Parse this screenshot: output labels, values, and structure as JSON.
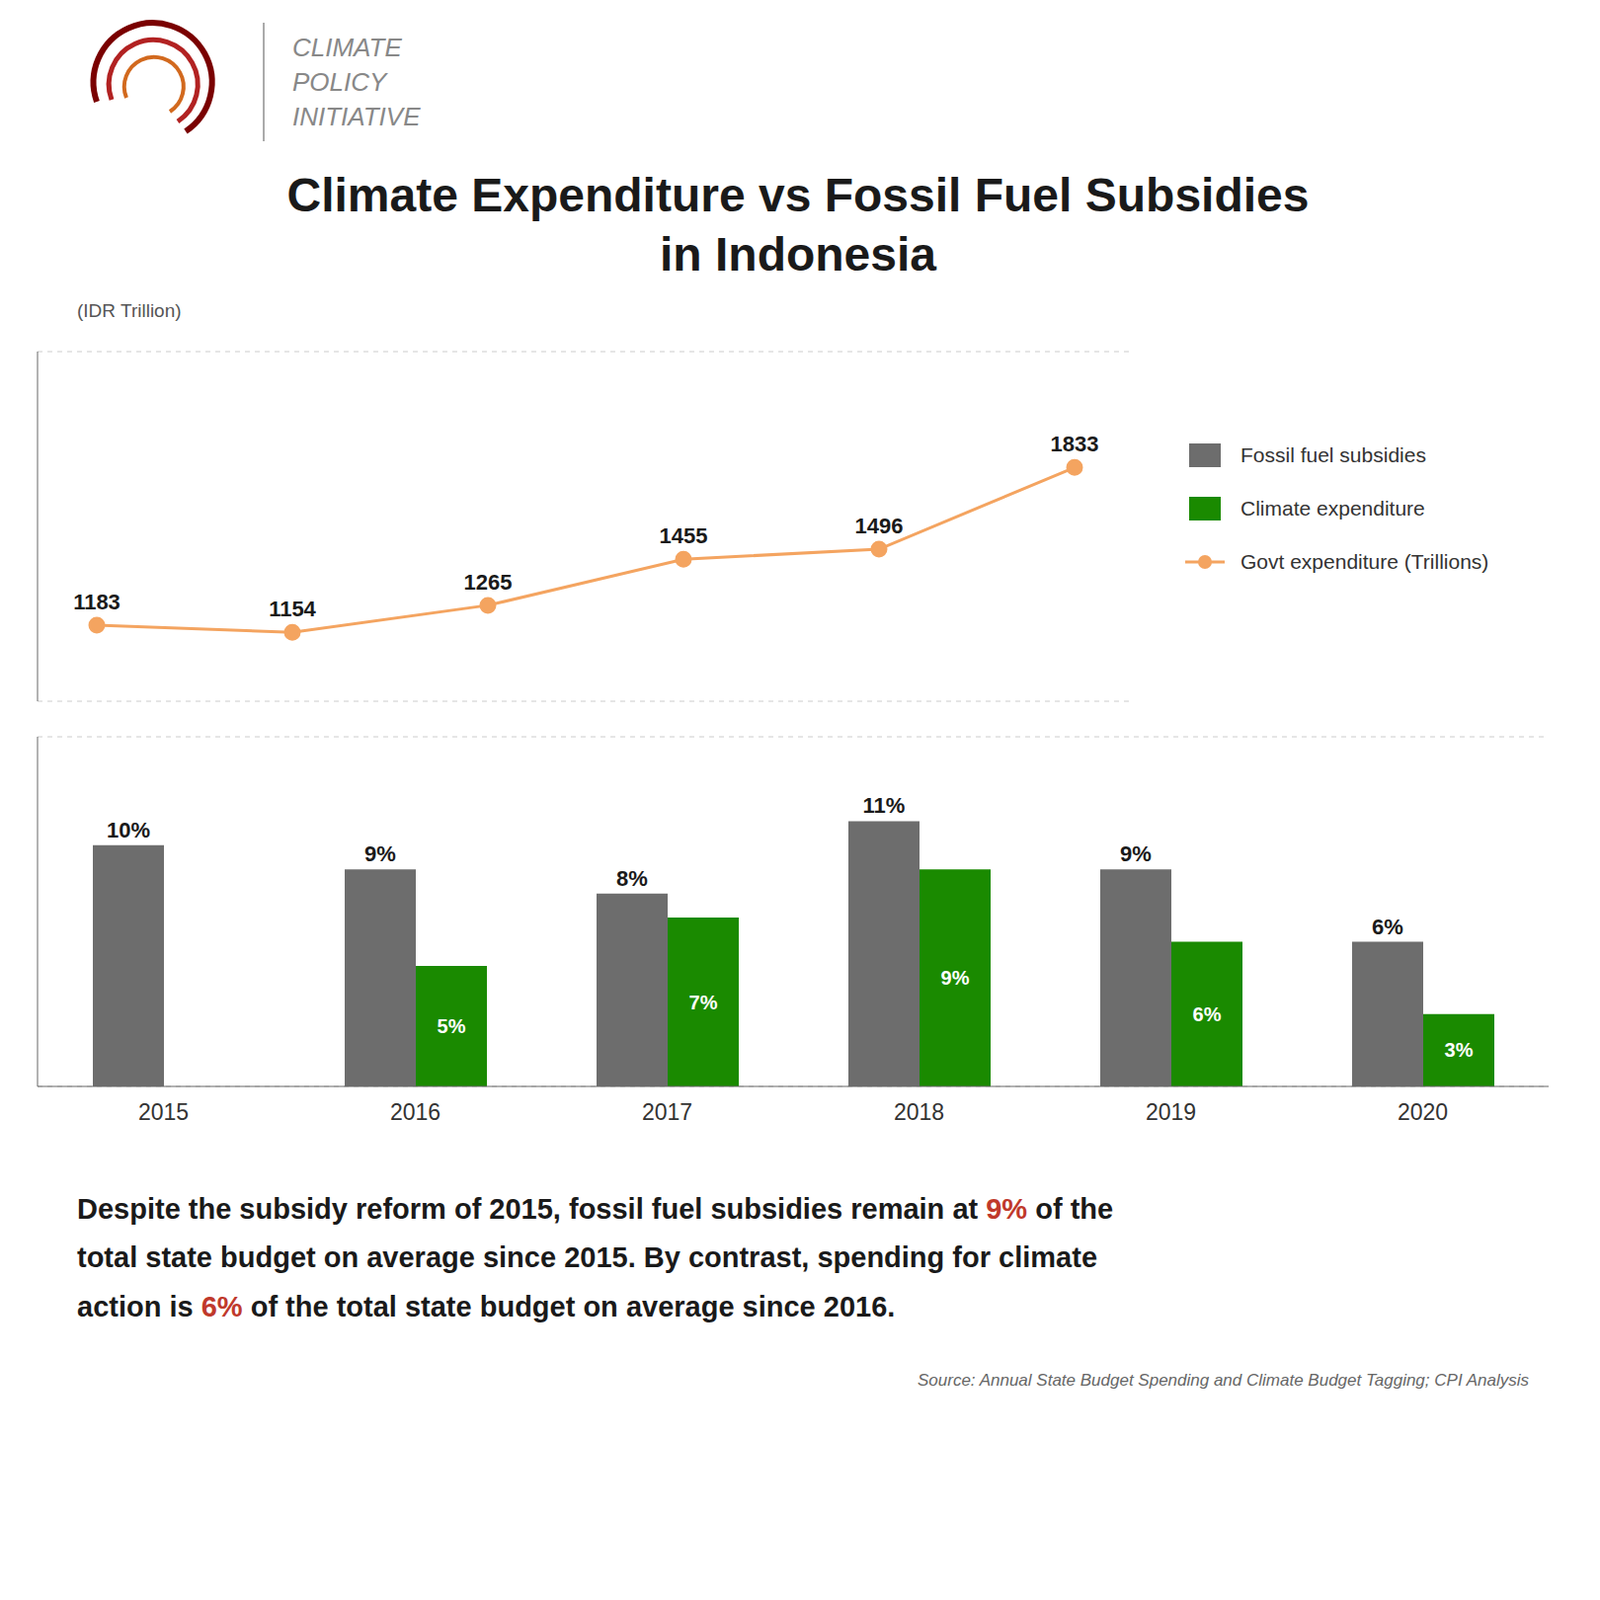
{
  "title": "Climate Expenditure vs Fossil Fuel Subsidies",
  "subtitle": "in Indonesia",
  "header": [
    "CLIMATE",
    "POLICY",
    "INITIATIVE"
  ],
  "chart_data": [
    {
      "type": "line",
      "y_label": "(IDR Trillion)",
      "categories": [
        "2015",
        "2016",
        "2017",
        "2018",
        "2019",
        "2020"
      ],
      "series": [
        {
          "name": "Govt expenditure (Trillions)",
          "color": "#f4a460",
          "marker": "circle",
          "values": [
            1183,
            1154,
            1265,
            1455,
            1496,
            1833
          ]
        }
      ],
      "ylim": [
        870,
        2310
      ],
      "yticks": [
        1050,
        1275,
        1500,
        1725,
        1950
      ],
      "grid": true,
      "tick_labels": false,
      "data_labels": true,
      "legend": "right"
    },
    {
      "type": "bar",
      "categories": [
        "2015",
        "2016",
        "2017",
        "2018",
        "2019",
        "2020"
      ],
      "series": [
        {
          "name": "Fossil fuel subsidies",
          "color": "#6d6d6d",
          "values": [
            10,
            9,
            8,
            11,
            9,
            6
          ],
          "value_labels": [
            "10%",
            "9%",
            "8%",
            "11%",
            "9%",
            "6%"
          ]
        },
        {
          "name": "Climate expenditure",
          "color": "#1a8a00",
          "values": [
            null,
            5,
            7,
            9,
            6,
            3
          ],
          "value_labels": [
            null,
            "5%",
            "7%",
            "9%",
            "6%",
            "3%"
          ]
        }
      ],
      "ylim": [
        0,
        14.5
      ],
      "yticks": [
        2,
        4,
        6,
        8,
        10,
        12
      ],
      "grid": true,
      "tick_labels": "x",
      "data_labels": true
    }
  ],
  "annotations": [
    [
      {
        "text": "Despite the subsidy reform of 2015, fossil fuel subsidies remain at ",
        "color": "#1a1a1a"
      },
      {
        "text": "9%",
        "color": "#c0392b"
      },
      {
        "text": " of the",
        "color": "#1a1a1a"
      }
    ],
    [
      {
        "text": "total state budget on average since 2015. By contrast, spending for climate",
        "color": "#1a1a1a"
      }
    ],
    [
      {
        "text": "action is ",
        "color": "#1a1a1a"
      },
      {
        "text": "6%",
        "color": "#c0392b"
      },
      {
        "text": " of the total state budget on average since 2016.",
        "color": "#1a1a1a"
      }
    ]
  ],
  "source": "Source: Annual State Budget Spending and Climate Budget Tagging; CPI Analysis"
}
